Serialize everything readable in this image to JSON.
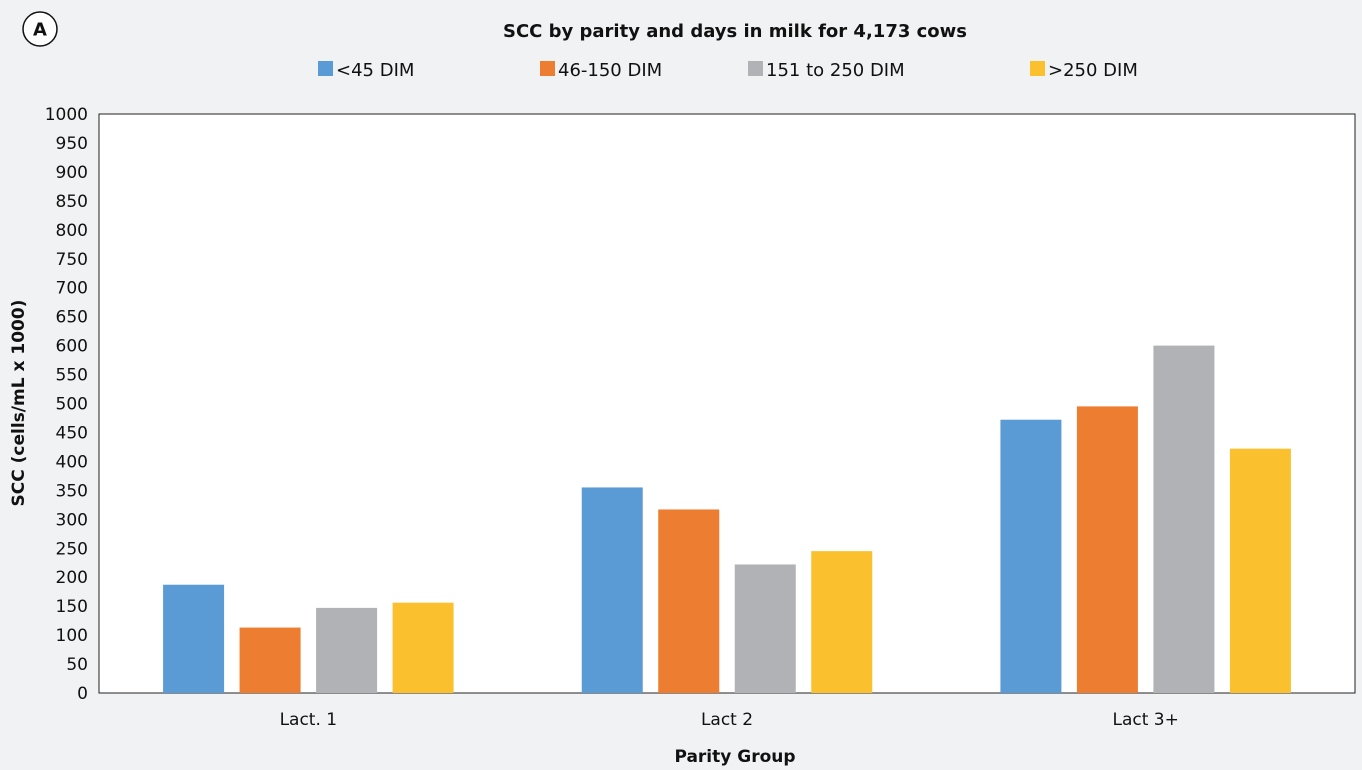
{
  "panel_label": "A",
  "chart_data": {
    "type": "bar",
    "title": "SCC by parity and days in milk for 4,173 cows",
    "xlabel": "Parity Group",
    "ylabel": "SCC (cells/mL x 1000)",
    "ylim": [
      0,
      1000
    ],
    "ytick_step": 50,
    "grid": false,
    "legend_position": "top",
    "categories": [
      "Lact. 1",
      "Lact 2",
      "Lact 3+"
    ],
    "series": [
      {
        "name": "<45 DIM",
        "color": "#5b9bd5",
        "values": [
          187,
          355,
          472
        ]
      },
      {
        "name": "46-150 DIM",
        "color": "#ed7d31",
        "values": [
          113,
          317,
          495
        ]
      },
      {
        "name": "151 to 250 DIM",
        "color": "#b1b2b5",
        "values": [
          147,
          222,
          600
        ]
      },
      {
        "name": ">250 DIM",
        "color": "#fbc02d",
        "values": [
          156,
          245,
          422
        ]
      }
    ]
  }
}
